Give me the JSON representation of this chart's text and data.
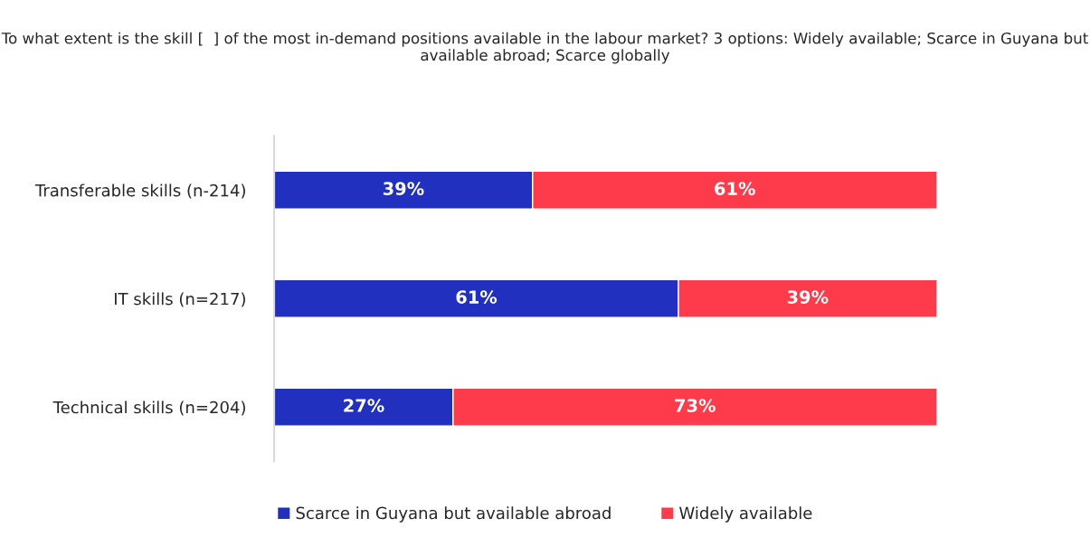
{
  "chart_data": {
    "type": "bar",
    "orientation": "horizontal",
    "stacked": true,
    "title": "To what extent is the skill [  ] of the most in-demand positions available in the labour market? 3 options: Widely available; Scarce in Guyana but available abroad; Scarce globally",
    "categories": [
      "Transferable skills (n-214)",
      "IT skills (n=217)",
      "Technical skills (n=204)"
    ],
    "series": [
      {
        "name": "Scarce in Guyana but available abroad",
        "color": "#2130be",
        "values": [
          39,
          61,
          27
        ],
        "value_labels": [
          "39%",
          "61%",
          "27%"
        ]
      },
      {
        "name": "Widely available",
        "color": "#fe3b4a",
        "values": [
          61,
          39,
          73
        ],
        "value_labels": [
          "61%",
          "39%",
          "73%"
        ]
      }
    ],
    "legend": "bottom"
  }
}
